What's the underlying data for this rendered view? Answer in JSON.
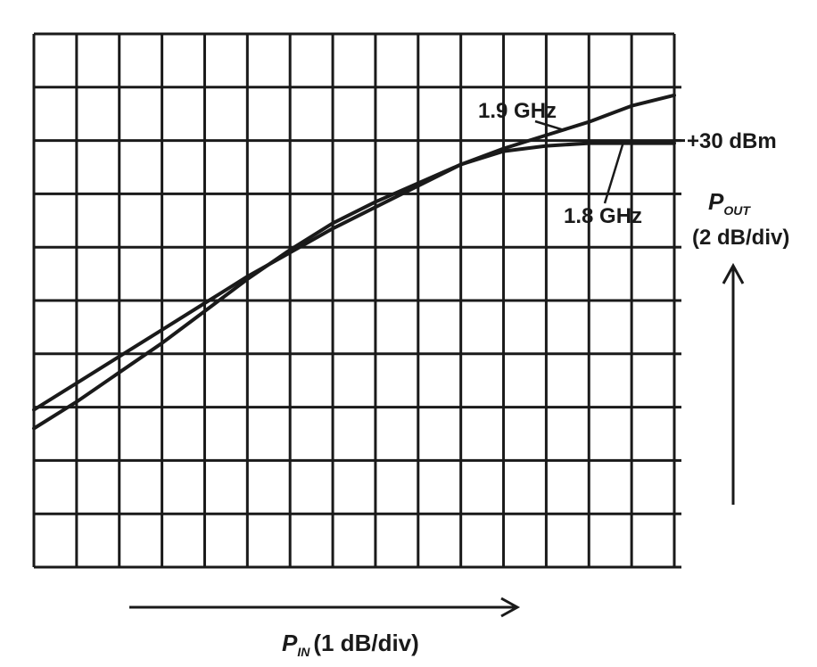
{
  "chart_data": {
    "type": "line",
    "title": "",
    "xlabel": {
      "symbol": "P",
      "subscript": "IN",
      "unit": "(1 dB/div)"
    },
    "ylabel": {
      "symbol": "P",
      "subscript": "OUT",
      "unit": "(2 dB/div)"
    },
    "xlim": [
      0,
      15
    ],
    "ylim": [
      0,
      20
    ],
    "grid": true,
    "x_divisions": 15,
    "y_divisions": 10,
    "reference_label": "+30 dBm",
    "reference_value": 16,
    "series": [
      {
        "name": "1.9 GHz",
        "x": [
          0,
          1,
          2,
          3,
          4,
          5,
          6,
          7,
          8,
          9,
          10,
          11,
          12,
          13,
          14,
          15
        ],
        "y": [
          5.9,
          6.9,
          7.9,
          8.9,
          9.9,
          10.9,
          11.8,
          12.7,
          13.5,
          14.3,
          15.1,
          15.7,
          16.2,
          16.7,
          17.3,
          17.7
        ]
      },
      {
        "name": "1.8 GHz",
        "x": [
          0,
          1,
          2,
          3,
          4,
          5,
          6,
          7,
          8,
          9,
          10,
          11,
          12,
          13,
          14,
          15
        ],
        "y": [
          5.2,
          6.2,
          7.3,
          8.4,
          9.6,
          10.8,
          11.9,
          12.9,
          13.7,
          14.4,
          15.1,
          15.6,
          15.8,
          15.9,
          15.9,
          15.9
        ]
      }
    ],
    "series_labels": [
      "1.9 GHz",
      "1.8 GHz"
    ]
  }
}
